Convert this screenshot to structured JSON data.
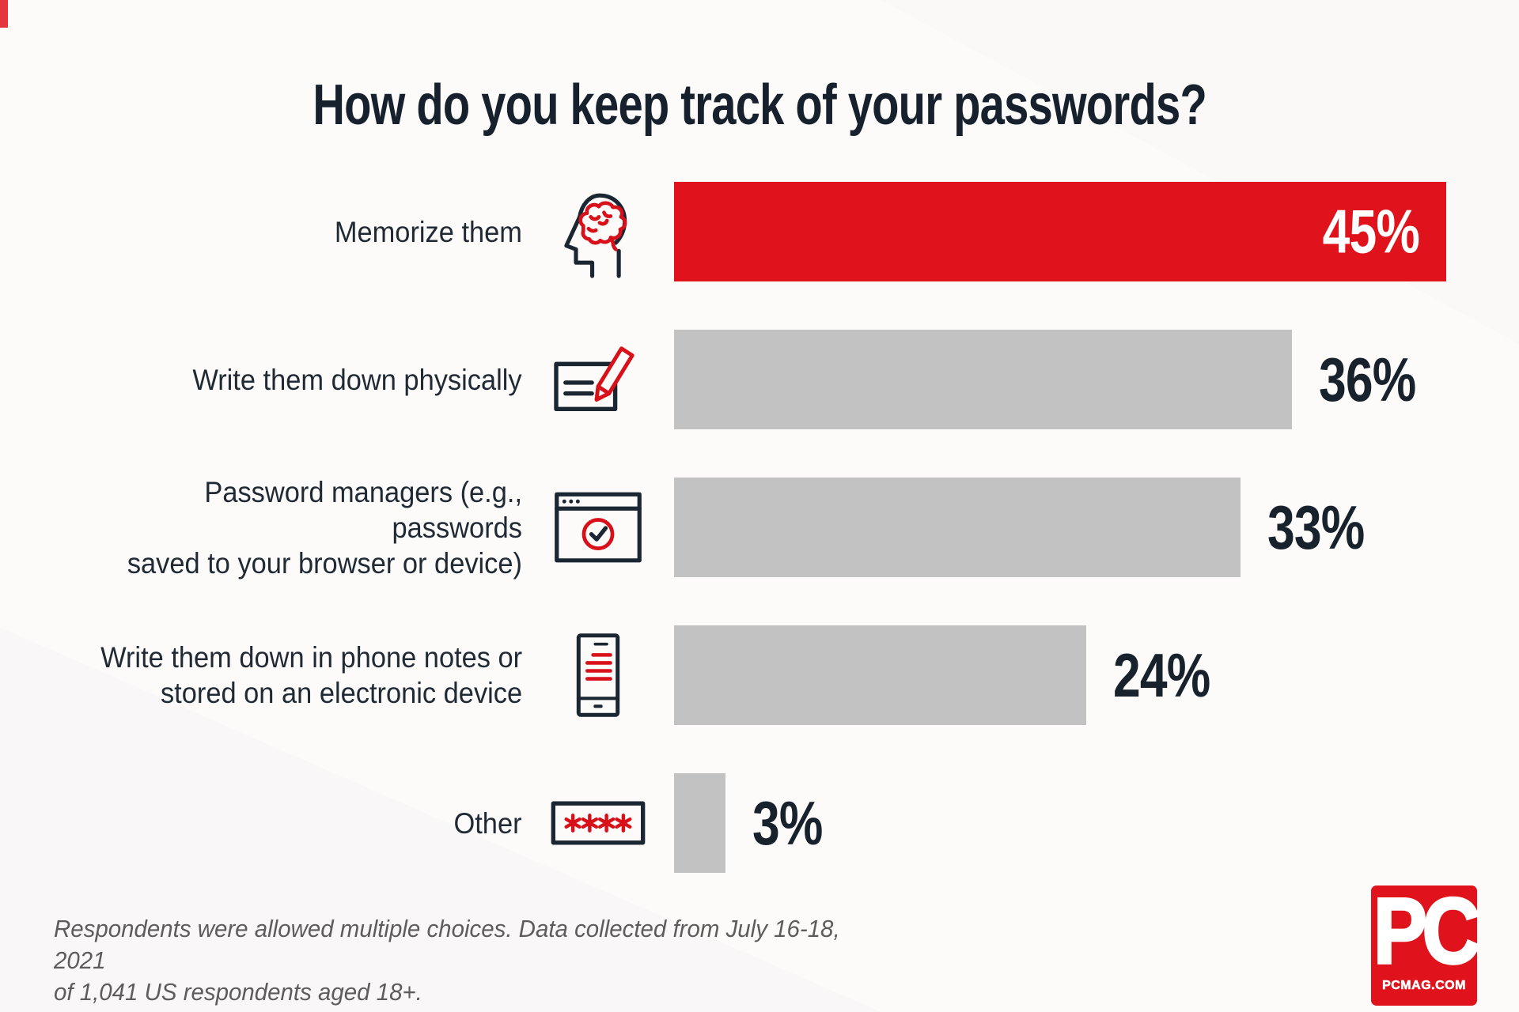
{
  "colors": {
    "brand_red": "#e0121b",
    "bar_gray": "#c3c2c2",
    "navy_text": "#17222d",
    "background": "#fcfbfa",
    "footnote_gray": "#5d5c5c"
  },
  "chart_data": {
    "type": "bar",
    "orientation": "horizontal",
    "title": "How do you keep track of your passwords?",
    "xlim": [
      0,
      45
    ],
    "unit": "%",
    "grid": false,
    "legend": false,
    "categories": [
      "Memorize them",
      "Write them down physically",
      "Password managers (e.g., passwords saved to your browser or device)",
      "Write them down in phone notes or stored on an electronic device",
      "Other"
    ],
    "values": [
      45,
      36,
      33,
      24,
      3
    ],
    "rows": [
      {
        "label_lines": [
          "Memorize them"
        ],
        "value": 45,
        "value_label": "45%",
        "icon": "head-brain-icon",
        "bar_color": "#e0121b",
        "value_inside": true
      },
      {
        "label_lines": [
          "Write them down physically"
        ],
        "value": 36,
        "value_label": "36%",
        "icon": "note-pencil-icon",
        "bar_color": "#c3c2c2",
        "value_inside": false
      },
      {
        "label_lines": [
          "Password managers (e.g., passwords",
          "saved to your browser or device)"
        ],
        "value": 33,
        "value_label": "33%",
        "icon": "browser-check-icon",
        "bar_color": "#c3c2c2",
        "value_inside": false
      },
      {
        "label_lines": [
          "Write them down in phone notes or",
          "stored on an electronic device"
        ],
        "value": 24,
        "value_label": "24%",
        "icon": "phone-notes-icon",
        "bar_color": "#c3c2c2",
        "value_inside": false
      },
      {
        "label_lines": [
          "Other"
        ],
        "value": 3,
        "value_label": "3%",
        "icon": "password-asterisks-icon",
        "bar_color": "#c3c2c2",
        "value_inside": false
      }
    ],
    "source_note_lines": [
      "Respondents were allowed multiple choices. Data collected from July 16-18, 2021",
      "of 1,041 US respondents aged 18+."
    ]
  },
  "logo": {
    "wordmark": "PC",
    "domain": "PCMAG.COM"
  }
}
